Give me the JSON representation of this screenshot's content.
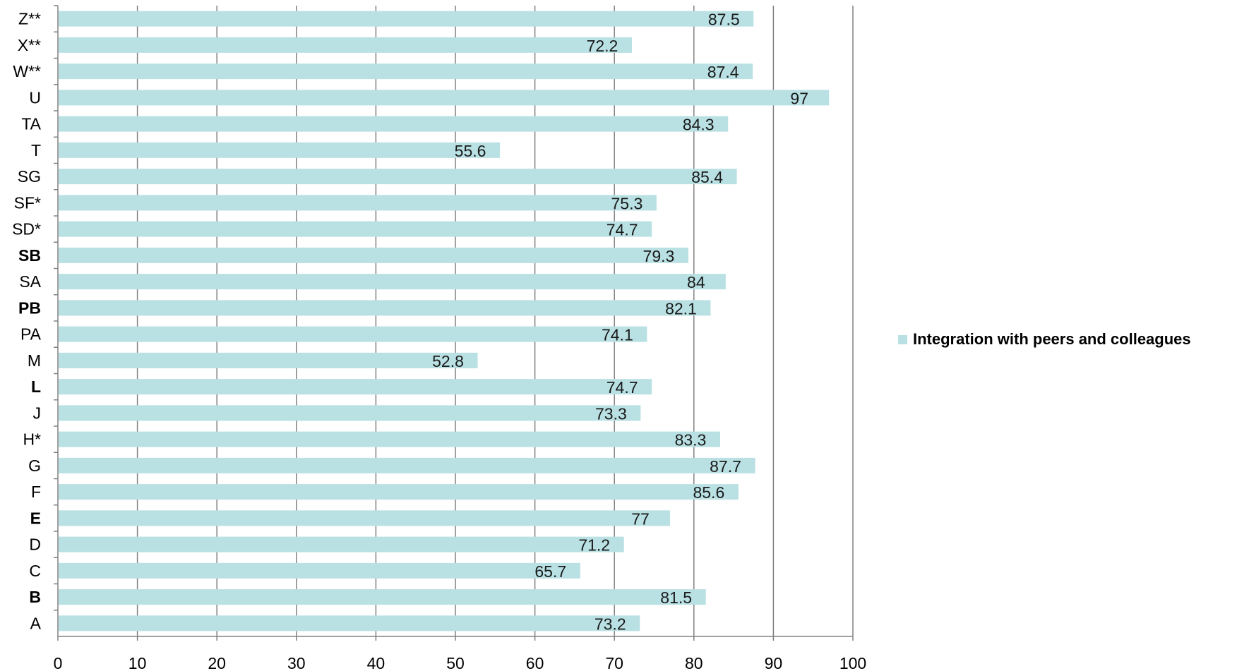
{
  "chart_data": {
    "type": "bar",
    "orientation": "horizontal",
    "categories": [
      "A",
      "B",
      "C",
      "D",
      "E",
      "F",
      "G",
      "H*",
      "J",
      "L",
      "M",
      "PA",
      "PB",
      "SA",
      "SB",
      "SD*",
      "SF*",
      "SG",
      "T",
      "TA",
      "U",
      "W**",
      "X**",
      "Z**"
    ],
    "bold_categories": [
      "B",
      "E",
      "L",
      "PB",
      "SB"
    ],
    "series": [
      {
        "name": "Integration with peers and colleagues",
        "values": [
          73.2,
          81.5,
          65.7,
          71.2,
          77,
          85.6,
          87.7,
          83.3,
          73.3,
          74.7,
          52.8,
          74.1,
          82.1,
          84,
          79.3,
          74.7,
          75.3,
          85.4,
          55.6,
          84.3,
          97,
          87.4,
          72.2,
          87.5
        ],
        "value_labels": [
          "73.2",
          "81.5",
          "65.7",
          "71.2",
          "77",
          "85.6",
          "87.7",
          "83.3",
          "73.3",
          "74.7",
          "52.8",
          "74.1",
          "82.1",
          "84",
          "79.3",
          "74.7",
          "75.3",
          "85.4",
          "55.6",
          "84.3",
          "97",
          "87.4",
          "72.2",
          "87.5"
        ]
      }
    ],
    "xlim": [
      0,
      100
    ],
    "x_ticks": [
      "0",
      "10",
      "20",
      "30",
      "40",
      "50",
      "60",
      "70",
      "80",
      "90",
      "100"
    ],
    "grid": "vertical",
    "legend_position": "right",
    "colors": {
      "bar": "#b9e0e3",
      "grid": "#808080",
      "axis": "#808080",
      "text": "#000000"
    }
  }
}
